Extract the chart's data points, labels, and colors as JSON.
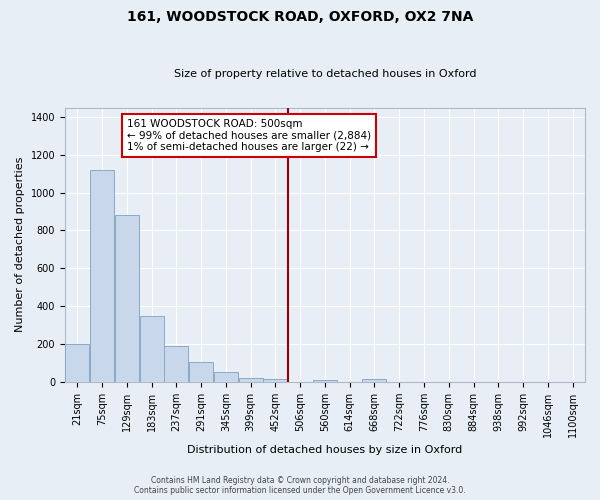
{
  "title": "161, WOODSTOCK ROAD, OXFORD, OX2 7NA",
  "subtitle": "Size of property relative to detached houses in Oxford",
  "xlabel": "Distribution of detached houses by size in Oxford",
  "ylabel": "Number of detached properties",
  "bar_labels": [
    "21sqm",
    "75sqm",
    "129sqm",
    "183sqm",
    "237sqm",
    "291sqm",
    "345sqm",
    "399sqm",
    "452sqm",
    "506sqm",
    "560sqm",
    "614sqm",
    "668sqm",
    "722sqm",
    "776sqm",
    "830sqm",
    "884sqm",
    "938sqm",
    "992sqm",
    "1046sqm",
    "1100sqm"
  ],
  "bar_values": [
    200,
    1120,
    880,
    350,
    190,
    105,
    50,
    20,
    15,
    0,
    10,
    0,
    15,
    0,
    0,
    0,
    0,
    0,
    0,
    0,
    0
  ],
  "bar_color": "#c8d8ea",
  "bar_edge_color": "#8aaac8",
  "vline_x_index": 9,
  "vline_color": "#990000",
  "annotation_title": "161 WOODSTOCK ROAD: 500sqm",
  "annotation_line1": "← 99% of detached houses are smaller (2,884)",
  "annotation_line2": "1% of semi-detached houses are larger (22) →",
  "annotation_box_color": "white",
  "annotation_box_edge_color": "#cc0000",
  "ylim": [
    0,
    1450
  ],
  "yticks": [
    0,
    200,
    400,
    600,
    800,
    1000,
    1200,
    1400
  ],
  "footer_line1": "Contains HM Land Registry data © Crown copyright and database right 2024.",
  "footer_line2": "Contains public sector information licensed under the Open Government Licence v3.0.",
  "bg_color": "#e8eef5",
  "plot_bg_color": "#e8eef5",
  "grid_color": "#ffffff",
  "spine_color": "#b0b8c8",
  "title_fontsize": 10,
  "subtitle_fontsize": 8,
  "ylabel_fontsize": 8,
  "xlabel_fontsize": 8,
  "tick_fontsize": 7,
  "footer_fontsize": 5.5
}
